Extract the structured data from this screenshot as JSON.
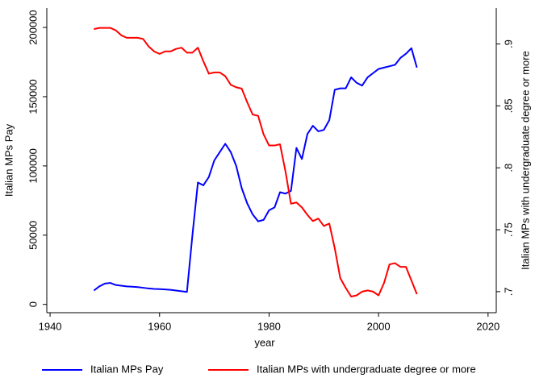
{
  "chart_data": {
    "type": "line",
    "x_label": "year",
    "y_label": "Italian MPs Pay",
    "y2_label": "Italian MPs with undergraduate degree or more",
    "x": [
      1948,
      1949,
      1950,
      1951,
      1952,
      1953,
      1954,
      1955,
      1956,
      1957,
      1958,
      1959,
      1960,
      1961,
      1962,
      1963,
      1964,
      1965,
      1966,
      1967,
      1968,
      1969,
      1970,
      1971,
      1972,
      1973,
      1974,
      1975,
      1976,
      1977,
      1978,
      1979,
      1980,
      1981,
      1982,
      1983,
      1984,
      1985,
      1986,
      1987,
      1988,
      1989,
      1990,
      1991,
      1992,
      1993,
      1994,
      1995,
      1996,
      1997,
      1998,
      1999,
      2000,
      2001,
      2002,
      2003,
      2004,
      2005,
      2006,
      2007
    ],
    "series": [
      {
        "name": "Italian MPs Pay",
        "color": "#0000ff",
        "values": [
          10000,
          13000,
          15000,
          15500,
          14000,
          13500,
          13000,
          12800,
          12500,
          12000,
          11500,
          11200,
          11000,
          10800,
          10500,
          10000,
          9500,
          9000,
          50000,
          88000,
          86000,
          92000,
          104000,
          110000,
          116000,
          110000,
          100000,
          84000,
          73000,
          65000,
          60000,
          61000,
          68000,
          70000,
          81000,
          80000,
          82000,
          113000,
          105000,
          123000,
          129000,
          125000,
          126000,
          133000,
          155000,
          156000,
          156000,
          164000,
          160000,
          158000,
          164000,
          167000,
          170000,
          171000,
          172000,
          173000,
          178000,
          181000,
          185000,
          171000
        ]
      },
      {
        "name": "Italian MPs with undergraduate degree or more",
        "color": "#ff0000",
        "axis": "y2",
        "values": [
          0.912,
          0.913,
          0.913,
          0.913,
          0.911,
          0.907,
          0.905,
          0.905,
          0.905,
          0.904,
          0.898,
          0.894,
          0.892,
          0.894,
          0.894,
          0.896,
          0.897,
          0.893,
          0.893,
          0.897,
          0.886,
          0.876,
          0.877,
          0.877,
          0.874,
          0.867,
          0.865,
          0.864,
          0.853,
          0.843,
          0.842,
          0.827,
          0.818,
          0.818,
          0.819,
          0.797,
          0.771,
          0.772,
          0.768,
          0.762,
          0.757,
          0.759,
          0.753,
          0.755,
          0.735,
          0.711,
          0.703,
          0.696,
          0.697,
          0.7,
          0.701,
          0.7,
          0.697,
          0.707,
          0.722,
          0.723,
          0.72,
          0.72,
          0.709,
          0.698
        ]
      }
    ],
    "xlim": [
      1939.4,
      2021.5
    ],
    "xticks": [
      1940,
      1960,
      1980,
      2000,
      2020
    ],
    "ylim": [
      -6000,
      214000
    ],
    "yticks": [
      0,
      50000,
      100000,
      150000,
      200000
    ],
    "y2lim": [
      0.683,
      0.929
    ],
    "y2ticks": [
      {
        "value": 0.7,
        "label": ".7"
      },
      {
        "value": 0.75,
        "label": ".75"
      },
      {
        "value": 0.8,
        "label": ".8"
      },
      {
        "value": 0.85,
        "label": ".85"
      },
      {
        "value": 0.9,
        "label": ".9"
      }
    ],
    "legend": "bottom"
  }
}
